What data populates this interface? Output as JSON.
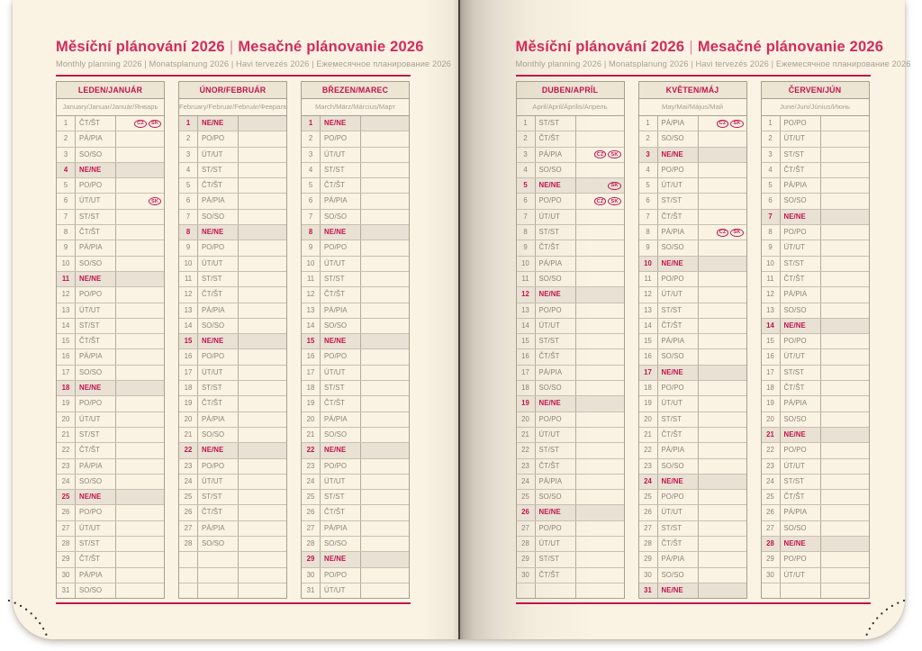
{
  "header": {
    "title_cs": "Měsíční plánování 2026",
    "divider": "|",
    "title_sk": "Mesačné plánovanie 2026",
    "subtitle": "Monthly planning 2026 | Monatsplanung 2026 | Havi tervezés 2026 | Ежемесячное планирование 2026"
  },
  "theme": {
    "accent_red": "#c2134e",
    "title_red": "#d42a5c",
    "page_cream": "#faf3e4",
    "sunday_row_bg": "#e9e2d4",
    "table_border": "#a89e8d",
    "text_gray": "#8a8375",
    "perforation_dot": "#2f2b26"
  },
  "holiday_badge_labels": [
    "CZ",
    "SK"
  ],
  "months": [
    {
      "title": "LEDEN/JANUÁR",
      "languages": "January/Januar/Január/Январь",
      "rows": [
        {
          "n": 1,
          "d": "ČT/ŠT",
          "h": [
            "CZ",
            "SK"
          ]
        },
        {
          "n": 2,
          "d": "PÁ/PIA"
        },
        {
          "n": 3,
          "d": "SO/SO"
        },
        {
          "n": 4,
          "d": "NE/NE"
        },
        {
          "n": 5,
          "d": "PO/PO"
        },
        {
          "n": 6,
          "d": "ÚT/UT",
          "h": [
            "SK"
          ]
        },
        {
          "n": 7,
          "d": "ST/ST"
        },
        {
          "n": 8,
          "d": "ČT/ŠT"
        },
        {
          "n": 9,
          "d": "PÁ/PIA"
        },
        {
          "n": 10,
          "d": "SO/SO"
        },
        {
          "n": 11,
          "d": "NE/NE"
        },
        {
          "n": 12,
          "d": "PO/PO"
        },
        {
          "n": 13,
          "d": "ÚT/UT"
        },
        {
          "n": 14,
          "d": "ST/ST"
        },
        {
          "n": 15,
          "d": "ČT/ŠT"
        },
        {
          "n": 16,
          "d": "PÁ/PIA"
        },
        {
          "n": 17,
          "d": "SO/SO"
        },
        {
          "n": 18,
          "d": "NE/NE"
        },
        {
          "n": 19,
          "d": "PO/PO"
        },
        {
          "n": 20,
          "d": "ÚT/UT"
        },
        {
          "n": 21,
          "d": "ST/ST"
        },
        {
          "n": 22,
          "d": "ČT/ŠT"
        },
        {
          "n": 23,
          "d": "PÁ/PIA"
        },
        {
          "n": 24,
          "d": "SO/SO"
        },
        {
          "n": 25,
          "d": "NE/NE"
        },
        {
          "n": 26,
          "d": "PO/PO"
        },
        {
          "n": 27,
          "d": "ÚT/UT"
        },
        {
          "n": 28,
          "d": "ST/ST"
        },
        {
          "n": 29,
          "d": "ČT/ŠT"
        },
        {
          "n": 30,
          "d": "PÁ/PIA"
        },
        {
          "n": 31,
          "d": "SO/SO"
        }
      ]
    },
    {
      "title": "ÚNOR/FEBRUÁR",
      "languages": "February/Februar/Február/Февраль",
      "rows": [
        {
          "n": 1,
          "d": "NE/NE"
        },
        {
          "n": 2,
          "d": "PO/PO"
        },
        {
          "n": 3,
          "d": "ÚT/UT"
        },
        {
          "n": 4,
          "d": "ST/ST"
        },
        {
          "n": 5,
          "d": "ČT/ŠT"
        },
        {
          "n": 6,
          "d": "PÁ/PIA"
        },
        {
          "n": 7,
          "d": "SO/SO"
        },
        {
          "n": 8,
          "d": "NE/NE"
        },
        {
          "n": 9,
          "d": "PO/PO"
        },
        {
          "n": 10,
          "d": "ÚT/UT"
        },
        {
          "n": 11,
          "d": "ST/ST"
        },
        {
          "n": 12,
          "d": "ČT/ŠT"
        },
        {
          "n": 13,
          "d": "PÁ/PIA"
        },
        {
          "n": 14,
          "d": "SO/SO"
        },
        {
          "n": 15,
          "d": "NE/NE"
        },
        {
          "n": 16,
          "d": "PO/PO"
        },
        {
          "n": 17,
          "d": "ÚT/UT"
        },
        {
          "n": 18,
          "d": "ST/ST"
        },
        {
          "n": 19,
          "d": "ČT/ŠT"
        },
        {
          "n": 20,
          "d": "PÁ/PIA"
        },
        {
          "n": 21,
          "d": "SO/SO"
        },
        {
          "n": 22,
          "d": "NE/NE"
        },
        {
          "n": 23,
          "d": "PO/PO"
        },
        {
          "n": 24,
          "d": "ÚT/UT"
        },
        {
          "n": 25,
          "d": "ST/ST"
        },
        {
          "n": 26,
          "d": "ČT/ŠT"
        },
        {
          "n": 27,
          "d": "PÁ/PIA"
        },
        {
          "n": 28,
          "d": "SO/SO"
        },
        {
          "n": "",
          "d": ""
        },
        {
          "n": "",
          "d": ""
        },
        {
          "n": "",
          "d": ""
        }
      ]
    },
    {
      "title": "BŘEZEN/MAREC",
      "languages": "March/März/Március/Март",
      "rows": [
        {
          "n": 1,
          "d": "NE/NE"
        },
        {
          "n": 2,
          "d": "PO/PO"
        },
        {
          "n": 3,
          "d": "ÚT/UT"
        },
        {
          "n": 4,
          "d": "ST/ST"
        },
        {
          "n": 5,
          "d": "ČT/ŠT"
        },
        {
          "n": 6,
          "d": "PÁ/PIA"
        },
        {
          "n": 7,
          "d": "SO/SO"
        },
        {
          "n": 8,
          "d": "NE/NE"
        },
        {
          "n": 9,
          "d": "PO/PO"
        },
        {
          "n": 10,
          "d": "ÚT/UT"
        },
        {
          "n": 11,
          "d": "ST/ST"
        },
        {
          "n": 12,
          "d": "ČT/ŠT"
        },
        {
          "n": 13,
          "d": "PÁ/PIA"
        },
        {
          "n": 14,
          "d": "SO/SO"
        },
        {
          "n": 15,
          "d": "NE/NE"
        },
        {
          "n": 16,
          "d": "PO/PO"
        },
        {
          "n": 17,
          "d": "ÚT/UT"
        },
        {
          "n": 18,
          "d": "ST/ST"
        },
        {
          "n": 19,
          "d": "ČT/ŠT"
        },
        {
          "n": 20,
          "d": "PÁ/PIA"
        },
        {
          "n": 21,
          "d": "SO/SO"
        },
        {
          "n": 22,
          "d": "NE/NE"
        },
        {
          "n": 23,
          "d": "PO/PO"
        },
        {
          "n": 24,
          "d": "ÚT/UT"
        },
        {
          "n": 25,
          "d": "ST/ST"
        },
        {
          "n": 26,
          "d": "ČT/ŠT"
        },
        {
          "n": 27,
          "d": "PÁ/PIA"
        },
        {
          "n": 28,
          "d": "SO/SO"
        },
        {
          "n": 29,
          "d": "NE/NE"
        },
        {
          "n": 30,
          "d": "PO/PO"
        },
        {
          "n": 31,
          "d": "ÚT/UT"
        }
      ]
    },
    {
      "title": "DUBEN/APRÍL",
      "languages": "April/April/Április/Апрель",
      "rows": [
        {
          "n": 1,
          "d": "ST/ST"
        },
        {
          "n": 2,
          "d": "ČT/ŠT"
        },
        {
          "n": 3,
          "d": "PÁ/PIA",
          "h": [
            "CZ",
            "SK"
          ]
        },
        {
          "n": 4,
          "d": "SO/SO"
        },
        {
          "n": 5,
          "d": "NE/NE",
          "h": [
            "SK"
          ]
        },
        {
          "n": 6,
          "d": "PO/PO",
          "h": [
            "CZ",
            "SK"
          ]
        },
        {
          "n": 7,
          "d": "ÚT/UT"
        },
        {
          "n": 8,
          "d": "ST/ST"
        },
        {
          "n": 9,
          "d": "ČT/ŠT"
        },
        {
          "n": 10,
          "d": "PÁ/PIA"
        },
        {
          "n": 11,
          "d": "SO/SO"
        },
        {
          "n": 12,
          "d": "NE/NE"
        },
        {
          "n": 13,
          "d": "PO/PO"
        },
        {
          "n": 14,
          "d": "ÚT/UT"
        },
        {
          "n": 15,
          "d": "ST/ST"
        },
        {
          "n": 16,
          "d": "ČT/ŠT"
        },
        {
          "n": 17,
          "d": "PÁ/PIA"
        },
        {
          "n": 18,
          "d": "SO/SO"
        },
        {
          "n": 19,
          "d": "NE/NE"
        },
        {
          "n": 20,
          "d": "PO/PO"
        },
        {
          "n": 21,
          "d": "ÚT/UT"
        },
        {
          "n": 22,
          "d": "ST/ST"
        },
        {
          "n": 23,
          "d": "ČT/ŠT"
        },
        {
          "n": 24,
          "d": "PÁ/PIA"
        },
        {
          "n": 25,
          "d": "SO/SO"
        },
        {
          "n": 26,
          "d": "NE/NE"
        },
        {
          "n": 27,
          "d": "PO/PO"
        },
        {
          "n": 28,
          "d": "ÚT/UT"
        },
        {
          "n": 29,
          "d": "ST/ST"
        },
        {
          "n": 30,
          "d": "ČT/ŠT"
        },
        {
          "n": "",
          "d": ""
        }
      ]
    },
    {
      "title": "KVĚTEN/MÁJ",
      "languages": "May/Mai/Május/Май",
      "rows": [
        {
          "n": 1,
          "d": "PÁ/PIA",
          "h": [
            "CZ",
            "SK"
          ]
        },
        {
          "n": 2,
          "d": "SO/SO"
        },
        {
          "n": 3,
          "d": "NE/NE"
        },
        {
          "n": 4,
          "d": "PO/PO"
        },
        {
          "n": 5,
          "d": "ÚT/UT"
        },
        {
          "n": 6,
          "d": "ST/ST"
        },
        {
          "n": 7,
          "d": "ČT/ŠT"
        },
        {
          "n": 8,
          "d": "PÁ/PIA",
          "h": [
            "CZ",
            "SK"
          ]
        },
        {
          "n": 9,
          "d": "SO/SO"
        },
        {
          "n": 10,
          "d": "NE/NE"
        },
        {
          "n": 11,
          "d": "PO/PO"
        },
        {
          "n": 12,
          "d": "ÚT/UT"
        },
        {
          "n": 13,
          "d": "ST/ST"
        },
        {
          "n": 14,
          "d": "ČT/ŠT"
        },
        {
          "n": 15,
          "d": "PÁ/PIA"
        },
        {
          "n": 16,
          "d": "SO/SO"
        },
        {
          "n": 17,
          "d": "NE/NE"
        },
        {
          "n": 18,
          "d": "PO/PO"
        },
        {
          "n": 19,
          "d": "ÚT/UT"
        },
        {
          "n": 20,
          "d": "ST/ST"
        },
        {
          "n": 21,
          "d": "ČT/ŠT"
        },
        {
          "n": 22,
          "d": "PÁ/PIA"
        },
        {
          "n": 23,
          "d": "SO/SO"
        },
        {
          "n": 24,
          "d": "NE/NE"
        },
        {
          "n": 25,
          "d": "PO/PO"
        },
        {
          "n": 26,
          "d": "ÚT/UT"
        },
        {
          "n": 27,
          "d": "ST/ST"
        },
        {
          "n": 28,
          "d": "ČT/ŠT"
        },
        {
          "n": 29,
          "d": "PÁ/PIA"
        },
        {
          "n": 30,
          "d": "SO/SO"
        },
        {
          "n": 31,
          "d": "NE/NE"
        }
      ]
    },
    {
      "title": "ČERVEN/JÚN",
      "languages": "June/Juni/Június/Июнь",
      "rows": [
        {
          "n": 1,
          "d": "PO/PO"
        },
        {
          "n": 2,
          "d": "ÚT/UT"
        },
        {
          "n": 3,
          "d": "ST/ST"
        },
        {
          "n": 4,
          "d": "ČT/ŠT"
        },
        {
          "n": 5,
          "d": "PÁ/PIA"
        },
        {
          "n": 6,
          "d": "SO/SO"
        },
        {
          "n": 7,
          "d": "NE/NE"
        },
        {
          "n": 8,
          "d": "PO/PO"
        },
        {
          "n": 9,
          "d": "ÚT/UT"
        },
        {
          "n": 10,
          "d": "ST/ST"
        },
        {
          "n": 11,
          "d": "ČT/ŠT"
        },
        {
          "n": 12,
          "d": "PÁ/PIA"
        },
        {
          "n": 13,
          "d": "SO/SO"
        },
        {
          "n": 14,
          "d": "NE/NE"
        },
        {
          "n": 15,
          "d": "PO/PO"
        },
        {
          "n": 16,
          "d": "ÚT/UT"
        },
        {
          "n": 17,
          "d": "ST/ST"
        },
        {
          "n": 18,
          "d": "ČT/ŠT"
        },
        {
          "n": 19,
          "d": "PÁ/PIA"
        },
        {
          "n": 20,
          "d": "SO/SO"
        },
        {
          "n": 21,
          "d": "NE/NE"
        },
        {
          "n": 22,
          "d": "PO/PO"
        },
        {
          "n": 23,
          "d": "ÚT/UT"
        },
        {
          "n": 24,
          "d": "ST/ST"
        },
        {
          "n": 25,
          "d": "ČT/ŠT"
        },
        {
          "n": 26,
          "d": "PÁ/PIA"
        },
        {
          "n": 27,
          "d": "SO/SO"
        },
        {
          "n": 28,
          "d": "NE/NE"
        },
        {
          "n": 29,
          "d": "PO/PO"
        },
        {
          "n": 30,
          "d": "ÚT/UT"
        },
        {
          "n": "",
          "d": ""
        }
      ]
    }
  ]
}
